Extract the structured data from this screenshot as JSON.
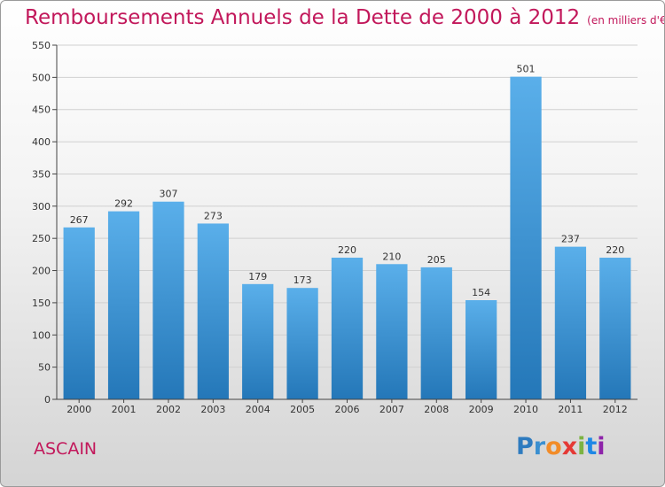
{
  "title": "Remboursements Annuels de la Dette de 2000 à 2012",
  "unit": "(en milliers d'€)",
  "commune": "ASCAIN",
  "logo": {
    "text": "Proxiti",
    "letters": [
      "P",
      "r",
      "o",
      "x",
      "i",
      "t",
      "i"
    ],
    "colors": [
      "#2e7bbf",
      "#3a8fd0",
      "#f28c28",
      "#e53935",
      "#7cb342",
      "#1e88e5",
      "#8e24aa"
    ]
  },
  "chart_data": {
    "type": "bar",
    "categories": [
      "2000",
      "2001",
      "2002",
      "2003",
      "2004",
      "2005",
      "2006",
      "2007",
      "2008",
      "2009",
      "2010",
      "2011",
      "2012"
    ],
    "values": [
      267,
      292,
      307,
      273,
      179,
      173,
      220,
      210,
      205,
      154,
      501,
      237,
      220
    ],
    "ylim": [
      0,
      550
    ],
    "yticks": [
      0,
      50,
      100,
      150,
      200,
      250,
      300,
      350,
      400,
      450,
      500,
      550
    ],
    "grid": true,
    "bar_color": "#4a9ede",
    "title": "Remboursements Annuels de la Dette de 2000 à 2012",
    "xlabel": "",
    "ylabel": ""
  }
}
